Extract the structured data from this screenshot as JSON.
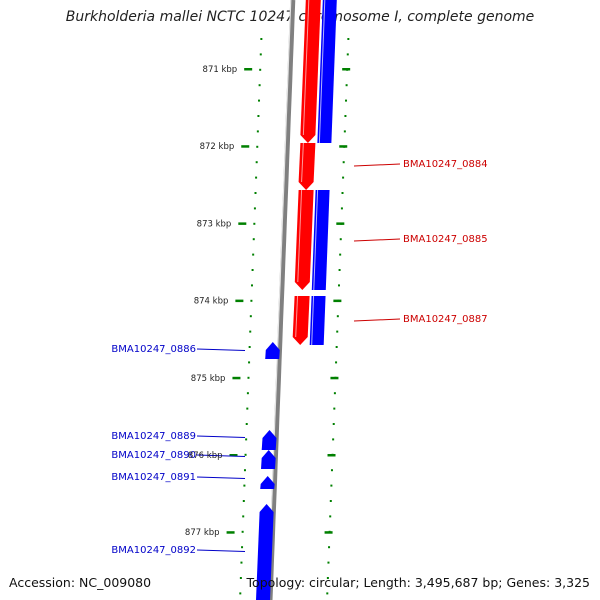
{
  "title": "Burkholderia mallei NCTC 10247 chromosome I, complete genome",
  "footer": {
    "accession_label": "Accession:",
    "accession": "NC_009080",
    "topology_label": "Topology:",
    "topology": "circular",
    "length_label": "Length:",
    "length": "3,495,687 bp",
    "genes_label": "Genes:",
    "genes": "3,325"
  },
  "scale": {
    "unit": "kbp",
    "ticks": [
      "871 kbp",
      "872 kbp",
      "873 kbp",
      "874 kbp",
      "875 kbp",
      "876 kbp",
      "877 kbp"
    ]
  },
  "colors": {
    "forward": "#0000ff",
    "reverse": "#ff0000",
    "forward_label": "#0000c8",
    "reverse_label": "#cc0000",
    "tick": "#008000",
    "backbone": "#808080"
  },
  "genes": {
    "reverse_strand": [
      {
        "name": "BMA10247_0884",
        "start_kbp": 871.95,
        "end_kbp": 872.57
      },
      {
        "name": "BMA10247_0885",
        "start_kbp": 872.57,
        "end_kbp": 873.95
      },
      {
        "name": "BMA10247_0887",
        "start_kbp": 873.97,
        "end_kbp": 874.6
      }
    ],
    "forward_strand": [
      {
        "name": "BMA10247_0886",
        "start_kbp": 874.57,
        "end_kbp": 874.8
      },
      {
        "name": "BMA10247_0889",
        "start_kbp": 875.7,
        "end_kbp": 875.93
      },
      {
        "name": "BMA10247_0890",
        "start_kbp": 875.97,
        "end_kbp": 876.2
      },
      {
        "name": "BMA10247_0891",
        "start_kbp": 876.3,
        "end_kbp": 876.45
      },
      {
        "name": "BMA10247_0892",
        "start_kbp": 876.55,
        "end_kbp": 877.8
      }
    ]
  }
}
